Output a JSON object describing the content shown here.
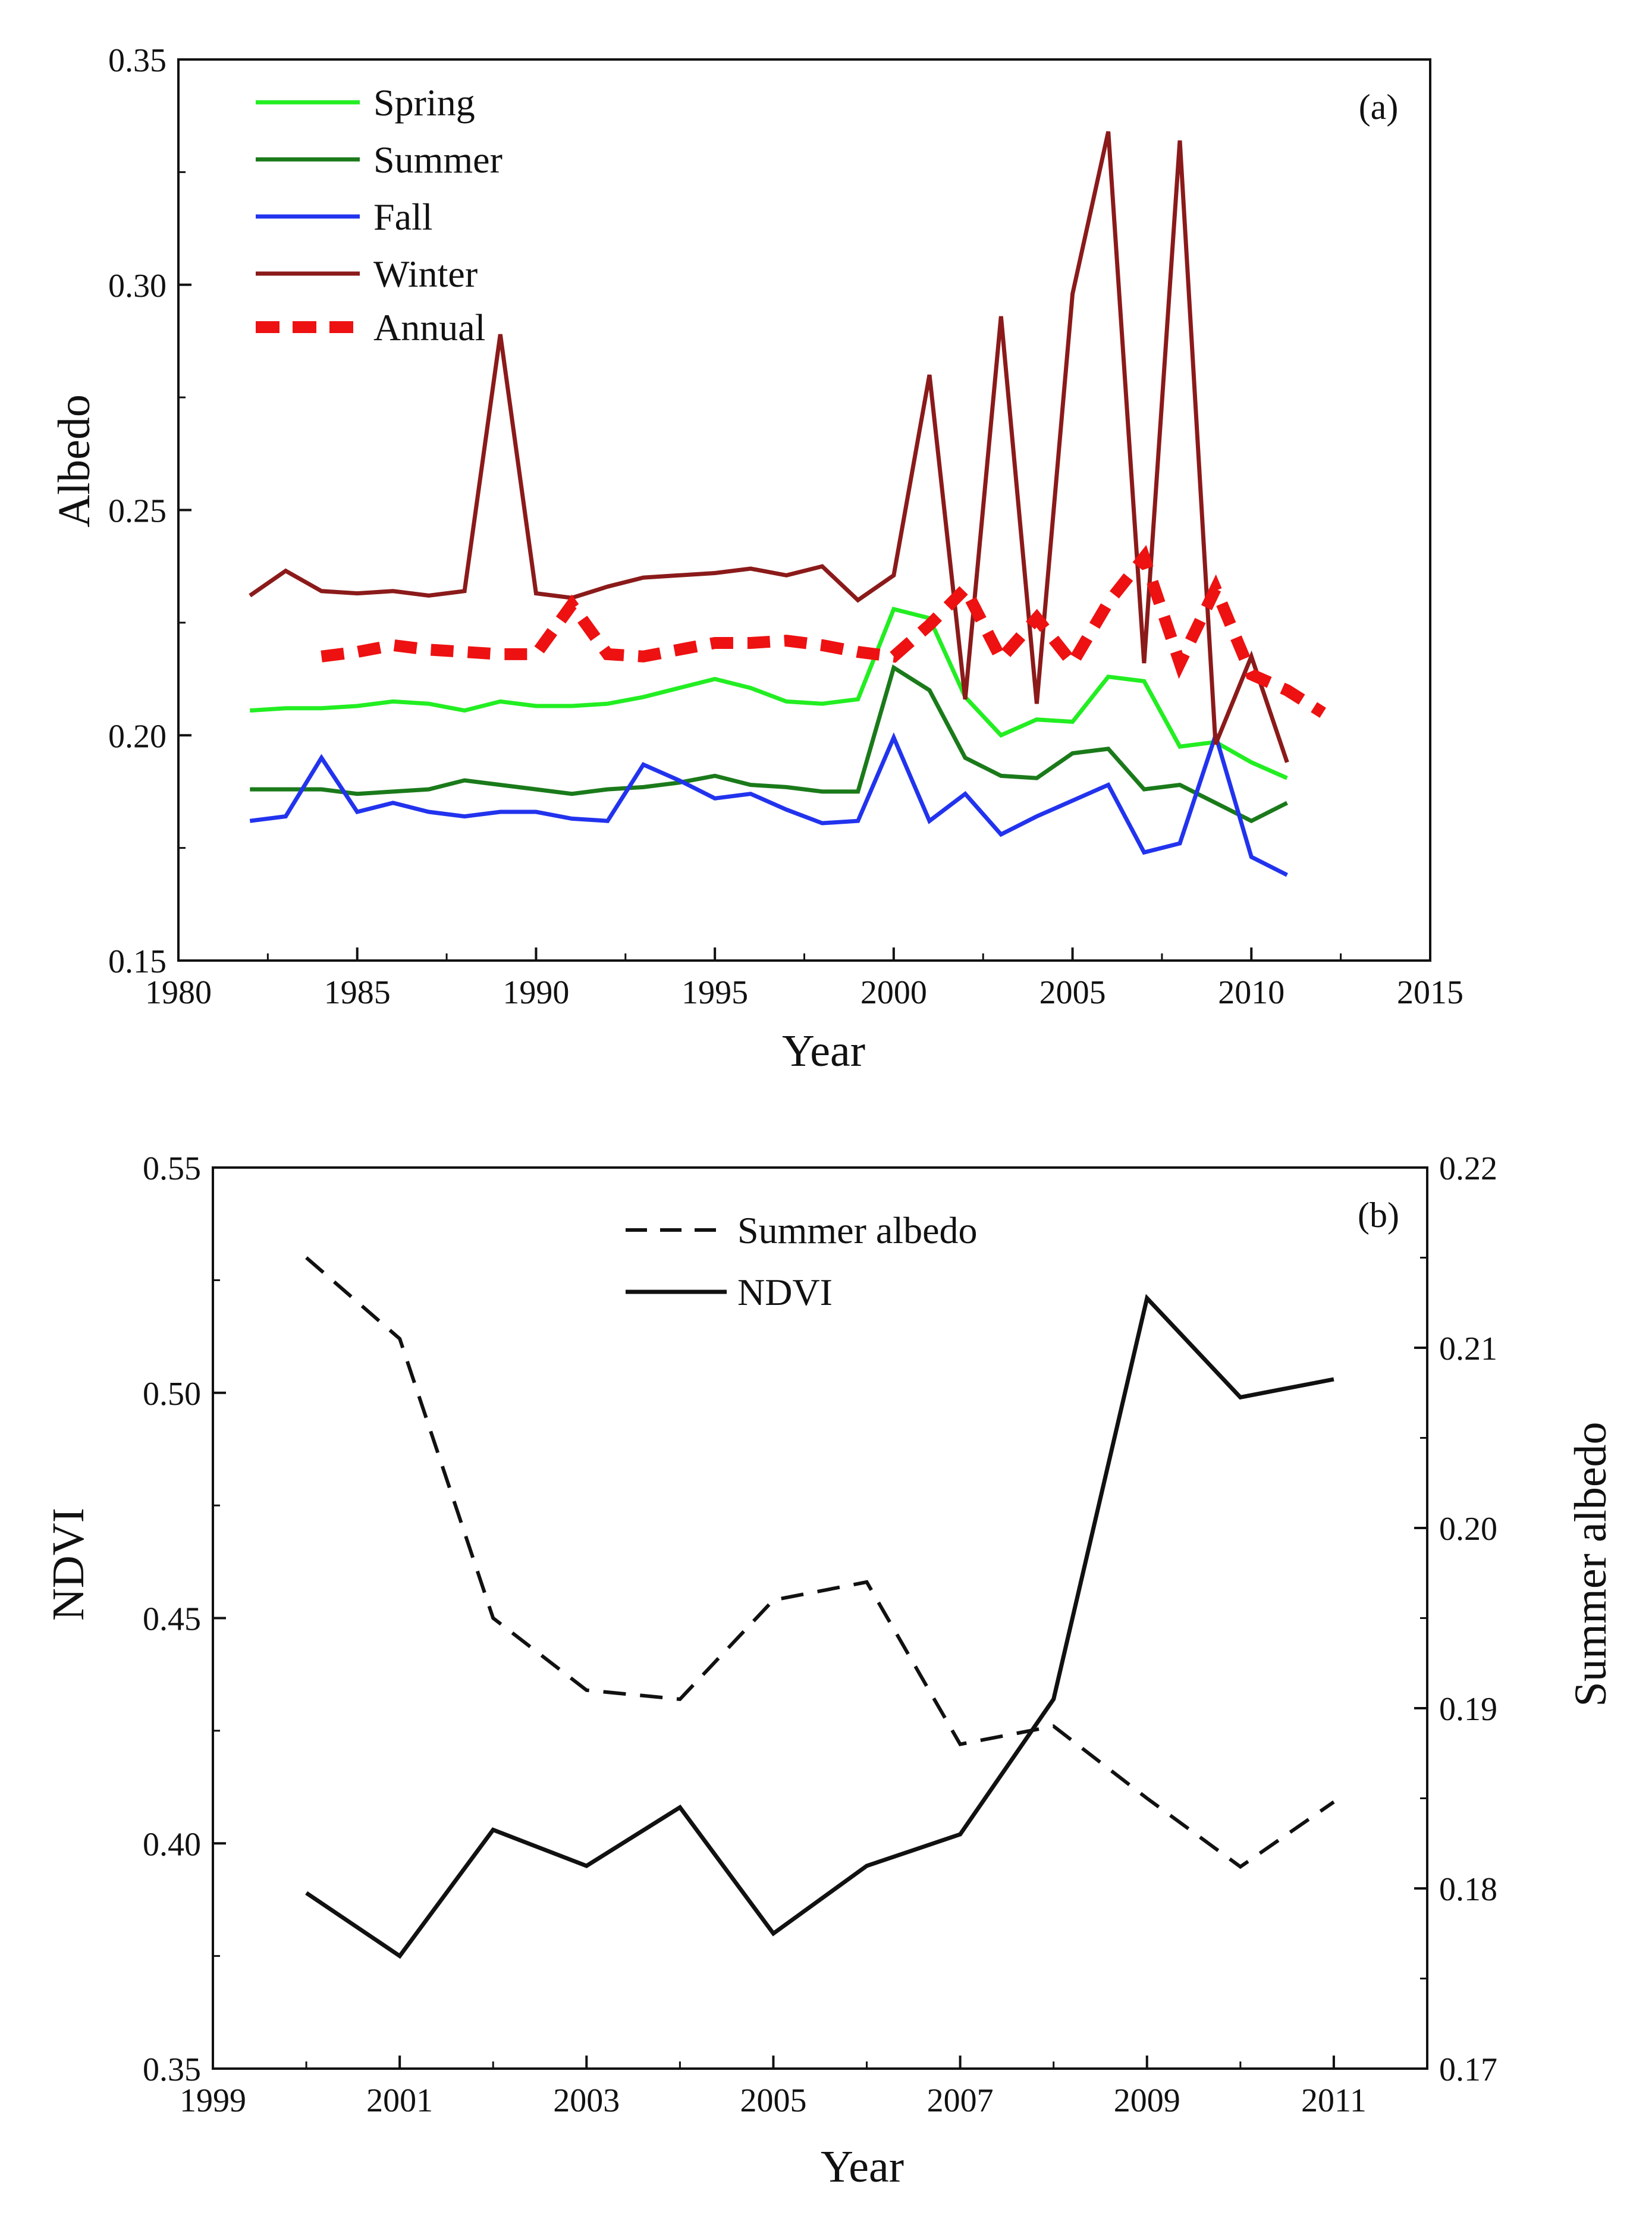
{
  "chart_data": [
    {
      "type": "line",
      "panel_label": "(a)",
      "title": "",
      "xlabel": "Year",
      "ylabel": "Albedo",
      "xlim": [
        1980,
        2015
      ],
      "ylim": [
        0.15,
        0.35
      ],
      "xticks": [
        1980,
        1985,
        1990,
        1995,
        2000,
        2005,
        2010,
        2015
      ],
      "xtick_labels": [
        "1980",
        "1985",
        "1990",
        "1995",
        "2000",
        "2005",
        "2010",
        "2015"
      ],
      "yticks": [
        0.15,
        0.2,
        0.25,
        0.3,
        0.35
      ],
      "ytick_labels": [
        "0.15",
        "0.20",
        "0.25",
        "0.30",
        "0.35"
      ],
      "legend_position": "top-left",
      "series": [
        {
          "name": "Spring",
          "color": "#22ee22",
          "style": "solid",
          "x": [
            1982,
            1983,
            1984,
            1985,
            1986,
            1987,
            1988,
            1989,
            1990,
            1991,
            1992,
            1993,
            1994,
            1995,
            1996,
            1997,
            1998,
            1999,
            2000,
            2001,
            2002,
            2003,
            2004,
            2005,
            2006,
            2007,
            2008,
            2009,
            2010,
            2011
          ],
          "y": [
            0.2055,
            0.206,
            0.206,
            0.2065,
            0.2075,
            0.207,
            0.2055,
            0.2075,
            0.2065,
            0.2065,
            0.207,
            0.2085,
            0.2105,
            0.2125,
            0.2105,
            0.2075,
            0.207,
            0.208,
            0.228,
            0.226,
            0.2085,
            0.2,
            0.2035,
            0.203,
            0.213,
            0.212,
            0.1975,
            0.1985,
            0.194,
            0.1905
          ]
        },
        {
          "name": "Summer",
          "color": "#1a7a1a",
          "style": "solid",
          "x": [
            1982,
            1983,
            1984,
            1985,
            1986,
            1987,
            1988,
            1989,
            1990,
            1991,
            1992,
            1993,
            1994,
            1995,
            1996,
            1997,
            1998,
            1999,
            2000,
            2001,
            2002,
            2003,
            2004,
            2005,
            2006,
            2007,
            2008,
            2009,
            2010,
            2011
          ],
          "y": [
            0.188,
            0.188,
            0.188,
            0.187,
            0.1875,
            0.188,
            0.19,
            0.189,
            0.188,
            0.187,
            0.188,
            0.1885,
            0.1895,
            0.191,
            0.189,
            0.1885,
            0.1875,
            0.1875,
            0.215,
            0.21,
            0.195,
            0.191,
            0.1905,
            0.196,
            0.197,
            0.188,
            0.189,
            0.185,
            0.181,
            0.185
          ]
        },
        {
          "name": "Fall",
          "color": "#2233ee",
          "style": "solid",
          "x": [
            1982,
            1983,
            1984,
            1985,
            1986,
            1987,
            1988,
            1989,
            1990,
            1991,
            1992,
            1993,
            1994,
            1995,
            1996,
            1997,
            1998,
            1999,
            2000,
            2001,
            2002,
            2003,
            2004,
            2005,
            2006,
            2007,
            2008,
            2009,
            2010,
            2011
          ],
          "y": [
            0.181,
            0.182,
            0.195,
            0.183,
            0.185,
            0.183,
            0.182,
            0.183,
            0.183,
            0.1815,
            0.181,
            0.1935,
            0.19,
            0.186,
            0.187,
            0.1835,
            0.1805,
            0.181,
            0.1995,
            0.181,
            0.187,
            0.178,
            0.182,
            0.1855,
            0.189,
            0.174,
            0.176,
            0.2,
            0.173,
            0.169
          ]
        },
        {
          "name": "Winter",
          "color": "#8b1a1a",
          "style": "solid",
          "x": [
            1982,
            1983,
            1984,
            1985,
            1986,
            1987,
            1988,
            1989,
            1990,
            1991,
            1992,
            1993,
            1994,
            1995,
            1996,
            1997,
            1998,
            1999,
            2000,
            2001,
            2002,
            2003,
            2004,
            2005,
            2006,
            2007,
            2008,
            2009,
            2010,
            2011
          ],
          "y": [
            0.231,
            0.2365,
            0.232,
            0.2315,
            0.232,
            0.231,
            0.232,
            0.289,
            0.2315,
            0.2305,
            0.233,
            0.235,
            0.2355,
            0.236,
            0.237,
            0.2355,
            0.2375,
            0.23,
            0.2355,
            0.28,
            0.208,
            0.293,
            0.207,
            0.298,
            0.334,
            0.216,
            0.332,
            0.198,
            0.2175,
            0.194
          ]
        },
        {
          "name": "Annual",
          "color": "#ee1111",
          "style": "dashed",
          "x": [
            1984,
            1985,
            1986,
            1987,
            1988,
            1989,
            1990,
            1991,
            1992,
            1993,
            1994,
            1995,
            1996,
            1997,
            1998,
            1999,
            2000,
            2001,
            2002,
            2003,
            2004,
            2005,
            2006,
            2007,
            2008,
            2009,
            2010,
            2011,
            2012
          ],
          "y": [
            0.2175,
            0.2185,
            0.22,
            0.219,
            0.2185,
            0.218,
            0.218,
            0.229,
            0.218,
            0.2175,
            0.219,
            0.2205,
            0.2205,
            0.221,
            0.22,
            0.2185,
            0.2175,
            0.2245,
            0.2325,
            0.217,
            0.226,
            0.216,
            0.2295,
            0.2395,
            0.216,
            0.2325,
            0.2135,
            0.21,
            0.205
          ]
        }
      ]
    },
    {
      "type": "line",
      "panel_label": "(b)",
      "title": "",
      "xlabel": "Year",
      "ylabel": "NDVI",
      "y2label": "Summer albedo",
      "xlim": [
        1999,
        2012
      ],
      "ylim": [
        0.35,
        0.55
      ],
      "y2lim": [
        0.17,
        0.22
      ],
      "xticks": [
        1999,
        2001,
        2003,
        2005,
        2007,
        2009,
        2011
      ],
      "xtick_labels": [
        "1999",
        "2001",
        "2003",
        "2005",
        "2007",
        "2009",
        "2011"
      ],
      "yticks": [
        0.35,
        0.4,
        0.45,
        0.5,
        0.55
      ],
      "ytick_labels": [
        "0.35",
        "0.40",
        "0.45",
        "0.50",
        "0.55"
      ],
      "y2ticks": [
        0.17,
        0.18,
        0.19,
        0.2,
        0.21,
        0.22
      ],
      "y2tick_labels": [
        "0.17",
        "0.18",
        "0.19",
        "0.20",
        "0.21",
        "0.22"
      ],
      "legend_position": "top-center",
      "series": [
        {
          "name": "Summer albedo",
          "color": "#111111",
          "style": "dashed",
          "axis": "right",
          "x": [
            2000,
            2001,
            2002,
            2003,
            2004,
            2005,
            2006,
            2007,
            2008,
            2009,
            2010,
            2011
          ],
          "y": [
            0.215,
            0.2105,
            0.195,
            0.191,
            0.1905,
            0.196,
            0.197,
            0.188,
            0.189,
            0.185,
            0.1812,
            0.1848
          ]
        },
        {
          "name": "NDVI",
          "color": "#111111",
          "style": "solid",
          "axis": "left",
          "x": [
            2000,
            2001,
            2002,
            2003,
            2004,
            2005,
            2006,
            2007,
            2008,
            2009,
            2010,
            2011
          ],
          "y": [
            0.389,
            0.375,
            0.403,
            0.395,
            0.408,
            0.38,
            0.395,
            0.402,
            0.432,
            0.521,
            0.499,
            0.503
          ]
        }
      ]
    }
  ]
}
